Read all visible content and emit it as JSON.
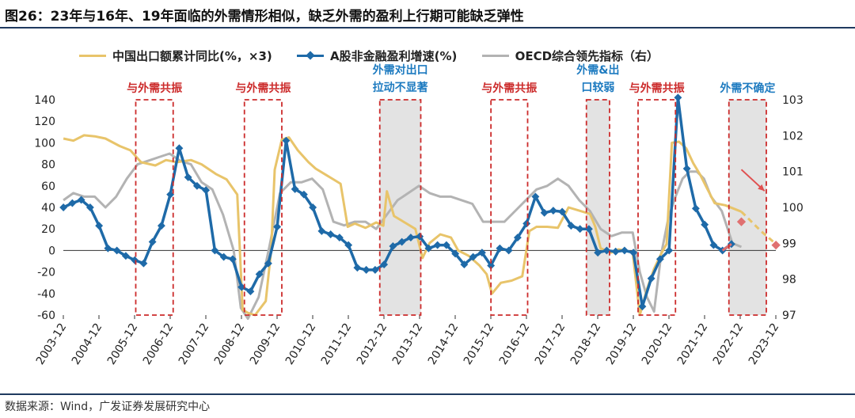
{
  "title": "图26：23年与16年、19年面临的外需情形相似，缺乏外需的盈利上行期可能缺乏弹性",
  "source": "数据来源：Wind，广发证券发展研究中心",
  "colors": {
    "export": "#e8c46a",
    "profit": "#1e6aa8",
    "oecd": "#b3b3b3",
    "box": "#cc2b2b",
    "shade": "#e3e3e3",
    "annotation_red": "#cc2b2b",
    "annotation_blue": "#1e7bc0",
    "arrow": "#e05050",
    "forecast_marker": "#e07070"
  },
  "chart_data": {
    "type": "line",
    "xticks": [
      "2003-12",
      "2004-12",
      "2005-12",
      "2006-12",
      "2007-12",
      "2008-12",
      "2009-12",
      "2010-12",
      "2011-12",
      "2012-12",
      "2013-12",
      "2014-12",
      "2015-12",
      "2016-12",
      "2017-12",
      "2018-12",
      "2019-12",
      "2020-12",
      "2021-12",
      "2022-12",
      "2023-12"
    ],
    "x_start": 2003.917,
    "x_end": 2023.917,
    "ylim": [
      -60,
      140
    ],
    "yticks": [
      -60,
      -40,
      -20,
      0,
      20,
      40,
      60,
      80,
      100,
      120,
      140
    ],
    "y2lim": [
      97,
      103
    ],
    "y2ticks": [
      97,
      98,
      99,
      100,
      101,
      102,
      103
    ],
    "legend_position": "top",
    "series": [
      {
        "name": "中国出口额累计同比(%，×3)",
        "axis": "left",
        "color": "#e8c46a",
        "marker": "none",
        "x": [
          2003.92,
          2004.2,
          2004.5,
          2004.8,
          2005.1,
          2005.5,
          2005.8,
          2006.1,
          2006.5,
          2006.8,
          2007.1,
          2007.5,
          2007.8,
          2008.2,
          2008.5,
          2008.8,
          2008.95,
          2009.1,
          2009.3,
          2009.6,
          2009.75,
          2009.85,
          2010.05,
          2010.25,
          2010.5,
          2010.8,
          2011.0,
          2011.3,
          2011.5,
          2011.7,
          2011.9,
          2012.1,
          2012.4,
          2012.7,
          2012.9,
          2013.0,
          2013.2,
          2013.5,
          2013.8,
          2014.0,
          2014.2,
          2014.5,
          2014.8,
          2015.0,
          2015.3,
          2015.6,
          2015.8,
          2015.95,
          2016.2,
          2016.5,
          2016.8,
          2017.0,
          2017.2,
          2017.5,
          2017.8,
          2018.1,
          2018.4,
          2018.7,
          2018.85,
          2019.0,
          2019.3,
          2019.5,
          2019.7,
          2019.9,
          2020.1,
          2020.3,
          2020.5,
          2020.7,
          2020.85,
          2021.0,
          2021.2,
          2021.4,
          2021.6,
          2021.8,
          2021.95,
          2022.2,
          2022.5,
          2022.8,
          2022.95
        ],
        "y": [
          104,
          102,
          107,
          106,
          104,
          97,
          93,
          82,
          79,
          84,
          82,
          84,
          80,
          71,
          66,
          52,
          -55,
          -58,
          -60,
          -47,
          0,
          75,
          103,
          105,
          93,
          82,
          76,
          70,
          66,
          62,
          22,
          25,
          21,
          26,
          23,
          55,
          32,
          26,
          20,
          -7,
          7,
          15,
          12,
          0,
          -5,
          -14,
          -22,
          -40,
          -30,
          -28,
          -24,
          18,
          22,
          22,
          21,
          40,
          37,
          34,
          22,
          2,
          -2,
          1,
          0,
          -2,
          -60,
          -36,
          -17,
          -3,
          6,
          100,
          101,
          95,
          81,
          70,
          60,
          44,
          42,
          38,
          36
        ]
      },
      {
        "name": "A股非金融盈利增速(%)",
        "axis": "left",
        "color": "#1e6aa8",
        "marker": "diamond",
        "x": [
          2003.92,
          2004.17,
          2004.42,
          2004.67,
          2004.92,
          2005.17,
          2005.42,
          2005.67,
          2005.92,
          2006.17,
          2006.42,
          2006.67,
          2006.92,
          2007.17,
          2007.42,
          2007.67,
          2007.92,
          2008.17,
          2008.42,
          2008.67,
          2008.92,
          2009.17,
          2009.42,
          2009.67,
          2009.92,
          2010.17,
          2010.42,
          2010.67,
          2010.92,
          2011.17,
          2011.42,
          2011.67,
          2011.92,
          2012.17,
          2012.42,
          2012.67,
          2012.92,
          2013.17,
          2013.42,
          2013.67,
          2013.92,
          2014.17,
          2014.42,
          2014.67,
          2014.92,
          2015.17,
          2015.42,
          2015.67,
          2015.92,
          2016.17,
          2016.42,
          2016.67,
          2016.92,
          2017.17,
          2017.42,
          2017.67,
          2017.92,
          2018.17,
          2018.42,
          2018.67,
          2018.92,
          2019.17,
          2019.42,
          2019.67,
          2019.92,
          2020.17,
          2020.42,
          2020.67,
          2020.92,
          2021.17,
          2021.42,
          2021.67,
          2021.92,
          2022.17,
          2022.42,
          2022.67
        ],
        "y": [
          40,
          44,
          47,
          40,
          23,
          2,
          0,
          -5,
          -9,
          -12,
          8,
          23,
          52,
          95,
          68,
          60,
          56,
          0,
          -6,
          -8,
          -34,
          -38,
          -22,
          -12,
          22,
          102,
          57,
          52,
          40,
          18,
          15,
          12,
          5,
          -16,
          -18,
          -18,
          -13,
          4,
          8,
          12,
          13,
          2,
          5,
          5,
          -3,
          -13,
          -6,
          -2,
          -14,
          2,
          0,
          12,
          25,
          50,
          35,
          37,
          36,
          23,
          20,
          20,
          -2,
          0,
          -1,
          0,
          -2,
          -52,
          -26,
          -8,
          0,
          142,
          76,
          39,
          24,
          5,
          0,
          6
        ]
      },
      {
        "name": "OECD综合领先指标（右）",
        "axis": "right",
        "color": "#b3b3b3",
        "marker": "none",
        "x": [
          2003.92,
          2004.2,
          2004.5,
          2004.8,
          2005.1,
          2005.4,
          2005.7,
          2006.0,
          2006.3,
          2006.6,
          2006.9,
          2007.2,
          2007.5,
          2007.8,
          2008.1,
          2008.4,
          2008.7,
          2008.9,
          2009.1,
          2009.4,
          2009.7,
          2010.0,
          2010.3,
          2010.6,
          2010.9,
          2011.2,
          2011.5,
          2011.8,
          2012.1,
          2012.4,
          2012.7,
          2013.0,
          2013.3,
          2013.6,
          2013.9,
          2014.2,
          2014.5,
          2014.8,
          2015.1,
          2015.4,
          2015.7,
          2016.0,
          2016.3,
          2016.6,
          2016.9,
          2017.2,
          2017.5,
          2017.8,
          2018.1,
          2018.4,
          2018.7,
          2019.0,
          2019.3,
          2019.6,
          2019.9,
          2020.1,
          2020.3,
          2020.5,
          2020.7,
          2020.9,
          2021.1,
          2021.3,
          2021.5,
          2021.7,
          2021.9,
          2022.1,
          2022.4,
          2022.7,
          2022.95
        ],
        "y": [
          100.2,
          100.4,
          100.3,
          100.3,
          100.0,
          100.3,
          100.8,
          101.2,
          101.3,
          101.4,
          101.5,
          101.3,
          101.2,
          100.7,
          100.5,
          99.8,
          98.8,
          97.2,
          96.9,
          97.5,
          98.9,
          100.4,
          100.7,
          100.7,
          100.8,
          100.5,
          99.6,
          99.5,
          99.6,
          99.6,
          99.4,
          99.8,
          100.2,
          100.4,
          100.6,
          100.4,
          100.3,
          100.3,
          100.2,
          100.1,
          99.6,
          99.6,
          99.6,
          99.9,
          100.2,
          100.5,
          100.6,
          100.8,
          100.6,
          100.2,
          99.9,
          99.4,
          99.2,
          99.3,
          99.3,
          98.2,
          97.5,
          97.1,
          98.7,
          99.7,
          100.3,
          100.8,
          101.0,
          101.0,
          100.8,
          100.3,
          99.9,
          99.0,
          98.9
        ]
      }
    ],
    "forecast": [
      {
        "series": "中国出口额累计同比(%，×3)",
        "axis": "left",
        "color": "#e8c46a",
        "dash": true,
        "x": [
          2022.95,
          2023.5,
          2023.92
        ],
        "y": [
          36,
          18,
          6
        ]
      },
      {
        "series": "A股非金融盈利增速(%)",
        "axis": "left",
        "color": "#e07070",
        "dash": false,
        "x": [
          2022.42,
          2022.67
        ],
        "y": [
          0,
          6
        ]
      }
    ],
    "forecast_points": [
      {
        "axis": "right",
        "x": 2022.95,
        "y": 99.6
      },
      {
        "axis": "left",
        "x": 2023.92,
        "y": 5
      }
    ],
    "boxes": [
      {
        "label_lines": [
          "与外需共振"
        ],
        "x0": 2005.95,
        "x1": 2007.0,
        "shaded": false,
        "label_color": "red"
      },
      {
        "label_lines": [
          "与外需共振"
        ],
        "x0": 2009.0,
        "x1": 2010.05,
        "shaded": false,
        "label_color": "red"
      },
      {
        "label_lines": [
          "外需对出口",
          "拉动不显著"
        ],
        "x0": 2012.8,
        "x1": 2013.95,
        "shaded": true,
        "label_color": "blue"
      },
      {
        "label_lines": [
          "与外需共振"
        ],
        "x0": 2015.92,
        "x1": 2016.95,
        "shaded": false,
        "label_color": "red"
      },
      {
        "label_lines": [
          "外需&出",
          "口较弱"
        ],
        "x0": 2018.6,
        "x1": 2019.25,
        "shaded": true,
        "label_color": "blue"
      },
      {
        "label_lines": [
          "与外需共振"
        ],
        "x0": 2020.05,
        "x1": 2021.1,
        "shaded": false,
        "label_color": "red"
      },
      {
        "label_lines": [
          "外需不确定"
        ],
        "x0": 2022.6,
        "x1": 2023.65,
        "shaded": true,
        "label_color": "blue"
      }
    ],
    "arrow": {
      "x0": 2022.95,
      "y0": 104,
      "x1": 2023.6,
      "y1": 103
    }
  }
}
